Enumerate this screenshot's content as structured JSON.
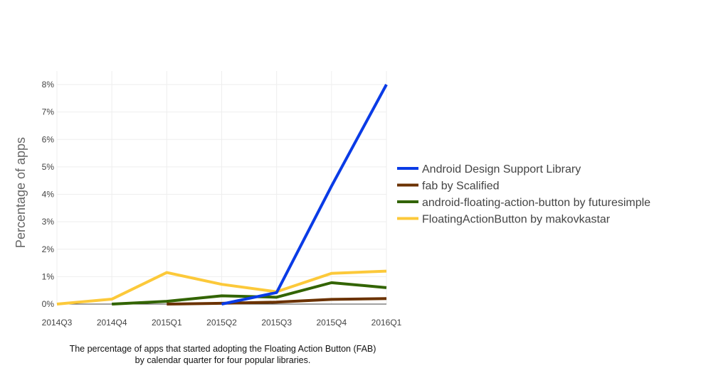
{
  "chart_data": {
    "type": "line",
    "categories": [
      "2014Q3",
      "2014Q4",
      "2015Q1",
      "2015Q2",
      "2015Q3",
      "2015Q4",
      "2016Q1"
    ],
    "ylabel": "Percentage of apps",
    "ylim": [
      0,
      8
    ],
    "y_ticks": [
      "0%",
      "1%",
      "2%",
      "3%",
      "4%",
      "5%",
      "6%",
      "7%",
      "8%"
    ],
    "grid": true,
    "legend_position": "right",
    "series": [
      {
        "name": "Android Design Support Library",
        "color": "#0a3be6",
        "values": [
          null,
          null,
          null,
          0.0,
          0.42,
          4.3,
          8.0
        ]
      },
      {
        "name": "fab by Scalified",
        "color": "#6b3200",
        "values": [
          null,
          null,
          0.0,
          0.03,
          0.07,
          0.17,
          0.2
        ]
      },
      {
        "name": "android-floating-action-button by futuresimple",
        "color": "#326400",
        "values": [
          null,
          0.0,
          0.1,
          0.3,
          0.25,
          0.78,
          0.6
        ]
      },
      {
        "name": "FloatingActionButton by makovkastar",
        "color": "#fcc93a",
        "values": [
          0.0,
          0.18,
          1.15,
          0.72,
          0.45,
          1.12,
          1.2
        ]
      }
    ]
  },
  "caption_line1": "The percentage of apps that started adopting the Floating Action Button (FAB)",
  "caption_line2": "by calendar quarter for four popular libraries."
}
